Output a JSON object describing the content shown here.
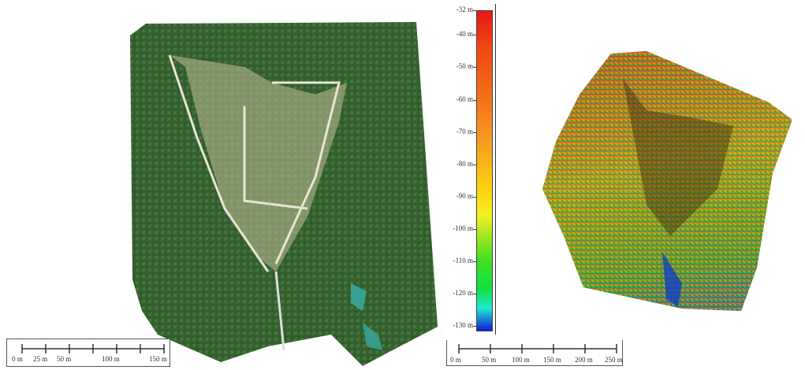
{
  "orthophoto": {
    "scale_bar": {
      "labels": [
        "0 m",
        "25 m",
        "50 m",
        "100 m",
        "150 m"
      ]
    }
  },
  "colorbar": {
    "labels": [
      "-32 m",
      "-40 m",
      "-50 m",
      "-60 m",
      "-70 m",
      "-80 m",
      "-90 m",
      "-100 m",
      "-110 m",
      "-120 m",
      "-130 m"
    ],
    "colors": [
      "#e8161b",
      "#f04a10",
      "#f5781a",
      "#f8a020",
      "#fbd010",
      "#f4f020",
      "#a8e820",
      "#40e020",
      "#10e040",
      "#20e8d0",
      "#1018d8"
    ]
  },
  "dem": {
    "scale_bar": {
      "labels": [
        "0 m",
        "50 m",
        "100 m",
        "150 m",
        "200 m",
        "250 m"
      ]
    }
  }
}
